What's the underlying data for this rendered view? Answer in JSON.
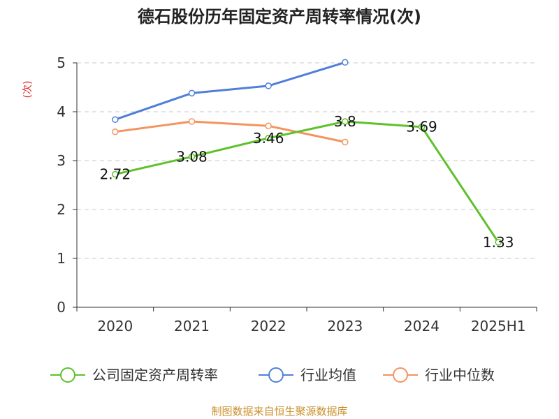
{
  "chart_data": {
    "type": "line",
    "title": "德石股份历年固定资产周转率情况(次)",
    "ylabel": "(次)",
    "categories": [
      "2020",
      "2021",
      "2022",
      "2023",
      "2024",
      "2025H1"
    ],
    "yticks": [
      "0",
      "1",
      "2",
      "3",
      "4",
      "5"
    ],
    "ylim": [
      0,
      5
    ],
    "grid": true,
    "legend_position": "bottom",
    "series": [
      {
        "name": "公司固定资产周转率",
        "color": "#5ec12a",
        "values": [
          2.72,
          3.08,
          3.46,
          3.8,
          3.69,
          1.33
        ],
        "labels": [
          "2.72",
          "3.08",
          "3.46",
          "3.8",
          "3.69",
          "1.33"
        ]
      },
      {
        "name": "行业均值",
        "color": "#4f7fd8",
        "values": [
          3.84,
          4.38,
          4.53,
          5.01,
          null,
          null
        ],
        "labels": null
      },
      {
        "name": "行业中位数",
        "color": "#f5935e",
        "values": [
          3.59,
          3.8,
          3.71,
          3.38,
          null,
          null
        ],
        "labels": null
      }
    ],
    "source": "制图数据来自恒生聚源数据库"
  }
}
